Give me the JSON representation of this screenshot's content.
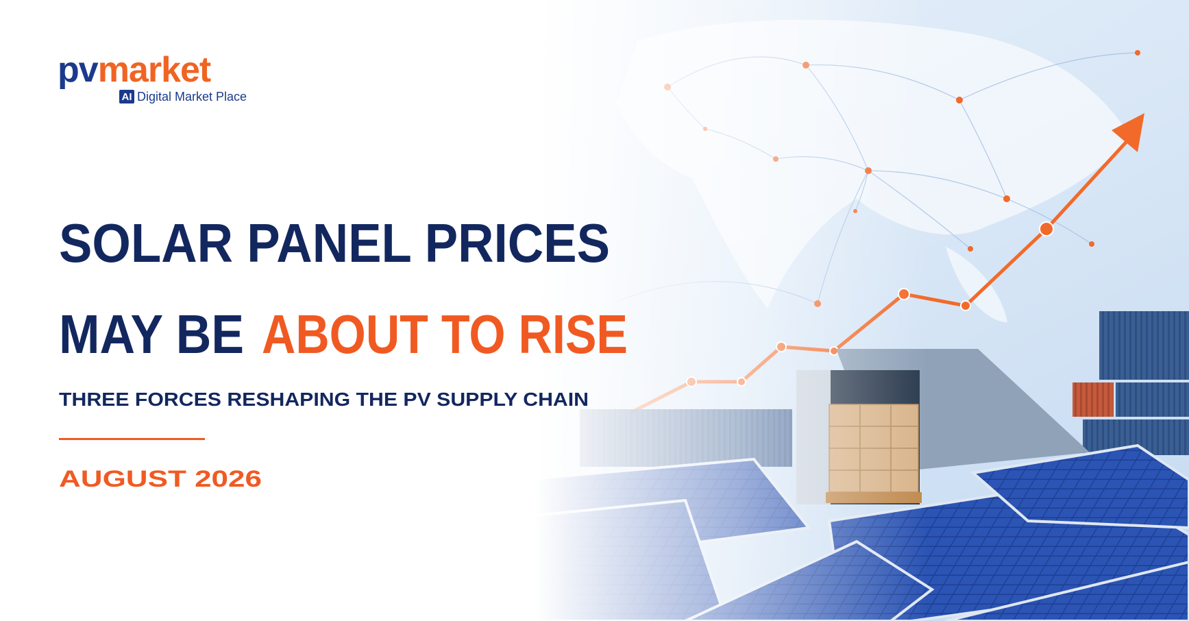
{
  "logo": {
    "brand_first": "pv",
    "brand_second": "market",
    "badge": "AI",
    "tagline": "Digital Market Place"
  },
  "headline": {
    "line1": "SOLAR PANEL PRICES",
    "line2_lead": "MAY BE",
    "line2_highlight": "ABOUT TO RISE"
  },
  "subtitle": "THREE FORCES RESHAPING THE PV SUPPLY CHAIN",
  "date": "AUGUST 2026"
}
